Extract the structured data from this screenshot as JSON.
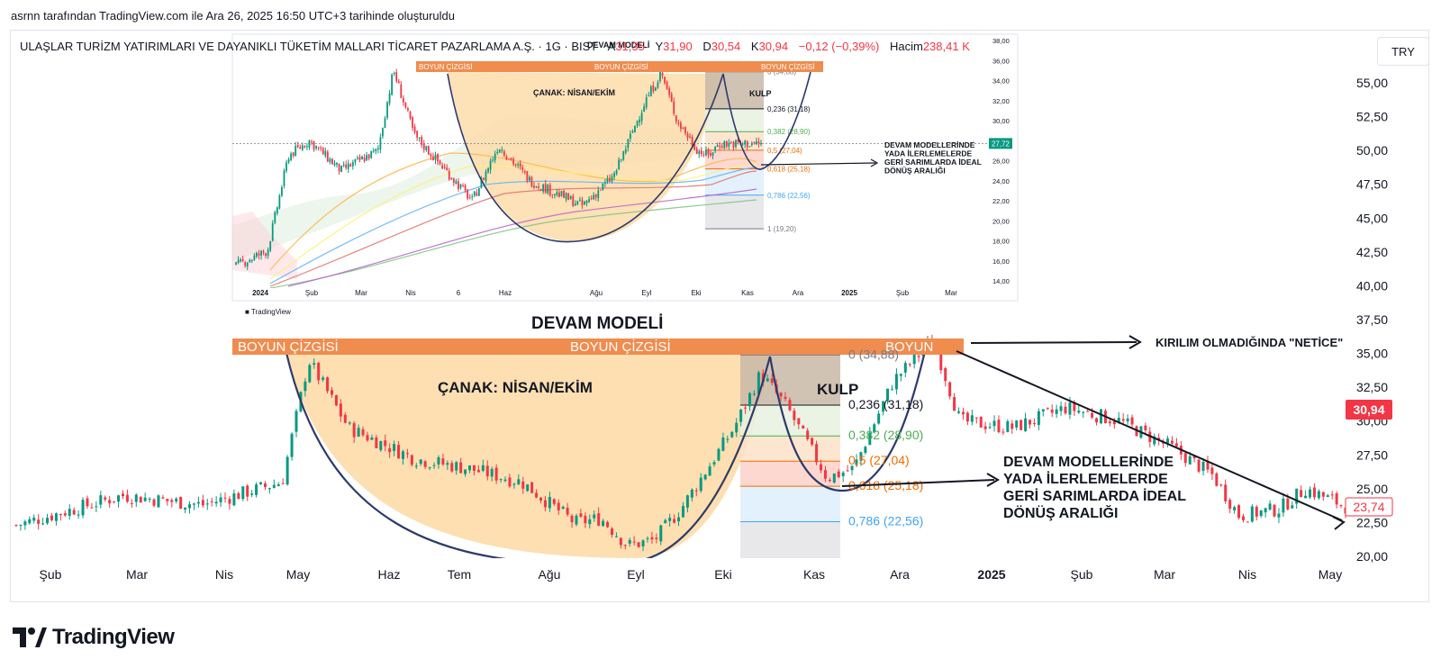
{
  "caption": "asrnn tarafından TradingView.com ile Ara 26, 2025 16:50 UTC+3 tarihinde oluşturuldu",
  "header": {
    "symbol": "ULAŞLAR TURİZM YATIRIMLARI VE DAYANIKLI TÜKETİM MALLARI TİCARET PAZARLAMA A.Ş. · 1G · BIST",
    "o_label": "A",
    "o_value": "31,35",
    "h_label": "Y",
    "h_value": "31,90",
    "l_label": "D",
    "l_value": "30,54",
    "c_label": "K",
    "c_value": "30,94",
    "change": "−0,12 (−0,39%)",
    "volume_label": "Hacim",
    "volume_value": "238,41 K"
  },
  "currency_button": "TRY",
  "brand": "TradingView",
  "colors": {
    "up": "#089981",
    "down": "#f23645",
    "neck": "#ef8c4e",
    "cup": "#fddcaa",
    "curve": "#2e3a6b",
    "price_badge": "#f23645"
  },
  "inset": {
    "watermark": "TradingView",
    "labels": {
      "model": "DEVAM MODELİ",
      "neck": "BOYUN ÇİZGİSİ",
      "cup": "ÇANAK: NİSAN/EKİM",
      "handle": "KULP",
      "note": [
        "DEVAM MODELLERİNDE",
        "YADA İLERLEMELERDE",
        "GERİ SARIMLARDA İDEAL",
        "DÖNÜŞ ARALIĞI"
      ],
      "last_price": "27,72"
    },
    "fib_levels": [
      {
        "label": "0 (34,88)",
        "price": 34.88,
        "color": "#787b86"
      },
      {
        "label": "0,236 (31,18)",
        "price": 31.18,
        "color": "#131722"
      },
      {
        "label": "0,382 (28,90)",
        "price": 28.9,
        "color": "#4caf50"
      },
      {
        "label": "0,5 (27,04)",
        "price": 27.04,
        "color": "#ef6c00"
      },
      {
        "label": "0,618 (25,18)",
        "price": 25.18,
        "color": "#ef6c00"
      },
      {
        "label": "0,786 (22,56)",
        "price": 22.56,
        "color": "#42a5f5"
      },
      {
        "label": "1 (19,20)",
        "price": 19.2,
        "color": "#787b86"
      }
    ],
    "y_ticks": [
      "38,00",
      "36,00",
      "34,00",
      "32,00",
      "30,00",
      "28,00",
      "26,00",
      "24,00",
      "22,00",
      "20,00",
      "18,00",
      "16,00",
      "14,00"
    ],
    "x_ticks": [
      "2024",
      "Şub",
      "Mar",
      "Nis",
      "6",
      "Haz",
      "Ağu",
      "Eyl",
      "Eki",
      "Kas",
      "Ara",
      "2025",
      "Şub",
      "Mar"
    ]
  },
  "main": {
    "labels": {
      "model": "DEVAM MODELİ",
      "neck": "BOYUN ÇİZGİSİ",
      "neck_short": "BOYUN",
      "cup": "ÇANAK: NİSAN/EKİM",
      "handle": "KULP",
      "no_break": "KIRILIM OLMADIĞINDA \"NETİCE\"",
      "note": [
        "DEVAM MODELLERİNDE",
        "YADA İLERLEMELERDE",
        "GERİ SARIMLARDA İDEAL",
        "DÖNÜŞ ARALIĞI"
      ],
      "last_price": "30,94",
      "crosshair_price": "23,74"
    },
    "fib_levels": [
      {
        "label": "0 (34,88)",
        "price": 34.88,
        "color": "#787b86"
      },
      {
        "label": "0,236 (31,18)",
        "price": 31.18,
        "color": "#131722"
      },
      {
        "label": "0,382 (28,90)",
        "price": 28.9,
        "color": "#4caf50"
      },
      {
        "label": "0,5 (27,04)",
        "price": 27.04,
        "color": "#ef6c00"
      },
      {
        "label": "0,618 (25,18)",
        "price": 25.18,
        "color": "#ef6c00"
      },
      {
        "label": "0,786 (22,56)",
        "price": 22.56,
        "color": "#42a5f5"
      }
    ],
    "y_ticks": [
      "55,00",
      "52,50",
      "50,00",
      "47,50",
      "45,00",
      "42,50",
      "40,00",
      "37,50",
      "35,00",
      "32,50",
      "30,00",
      "27,50",
      "25,00",
      "22,50",
      "20,00"
    ],
    "x_ticks": [
      "Şub",
      "Mar",
      "Nis",
      "May",
      "Haz",
      "Tem",
      "Ağu",
      "Eyl",
      "Eki",
      "Kas",
      "Ara",
      "2025",
      "Şub",
      "Mar",
      "Nis",
      "May"
    ]
  },
  "chart_data": {
    "type": "candlestick",
    "title": "ULAŞLAR TURİZM YATIRIMLARI VE DAYANIKLI TÜKETİM MALLARI TİCARET PAZARLAMA A.Ş. · 1G · BIST",
    "ylabel": "TRY",
    "ylim": [
      20.0,
      37.5
    ],
    "x": [
      "Şub",
      "Mar",
      "Nis",
      "May",
      "Haz",
      "Tem",
      "Ağu",
      "Eyl",
      "Eki",
      "Kas",
      "Ara",
      "2025",
      "Şub",
      "Mar",
      "Nis",
      "May"
    ],
    "series": [
      {
        "name": "",
        "values": [
          23.0,
          24.8,
          25.8,
          34.5,
          28.0,
          25.5,
          23.5,
          21.5,
          28.5,
          25.0,
          35.0,
          30.0,
          30.5,
          28.0,
          23.0,
          23.7
        ]
      }
    ],
    "last": {
      "open": 31.35,
      "high": 31.9,
      "low": 30.54,
      "close": 30.94,
      "change": -0.12,
      "change_pct": -0.39,
      "volume": "238,41 K"
    }
  }
}
